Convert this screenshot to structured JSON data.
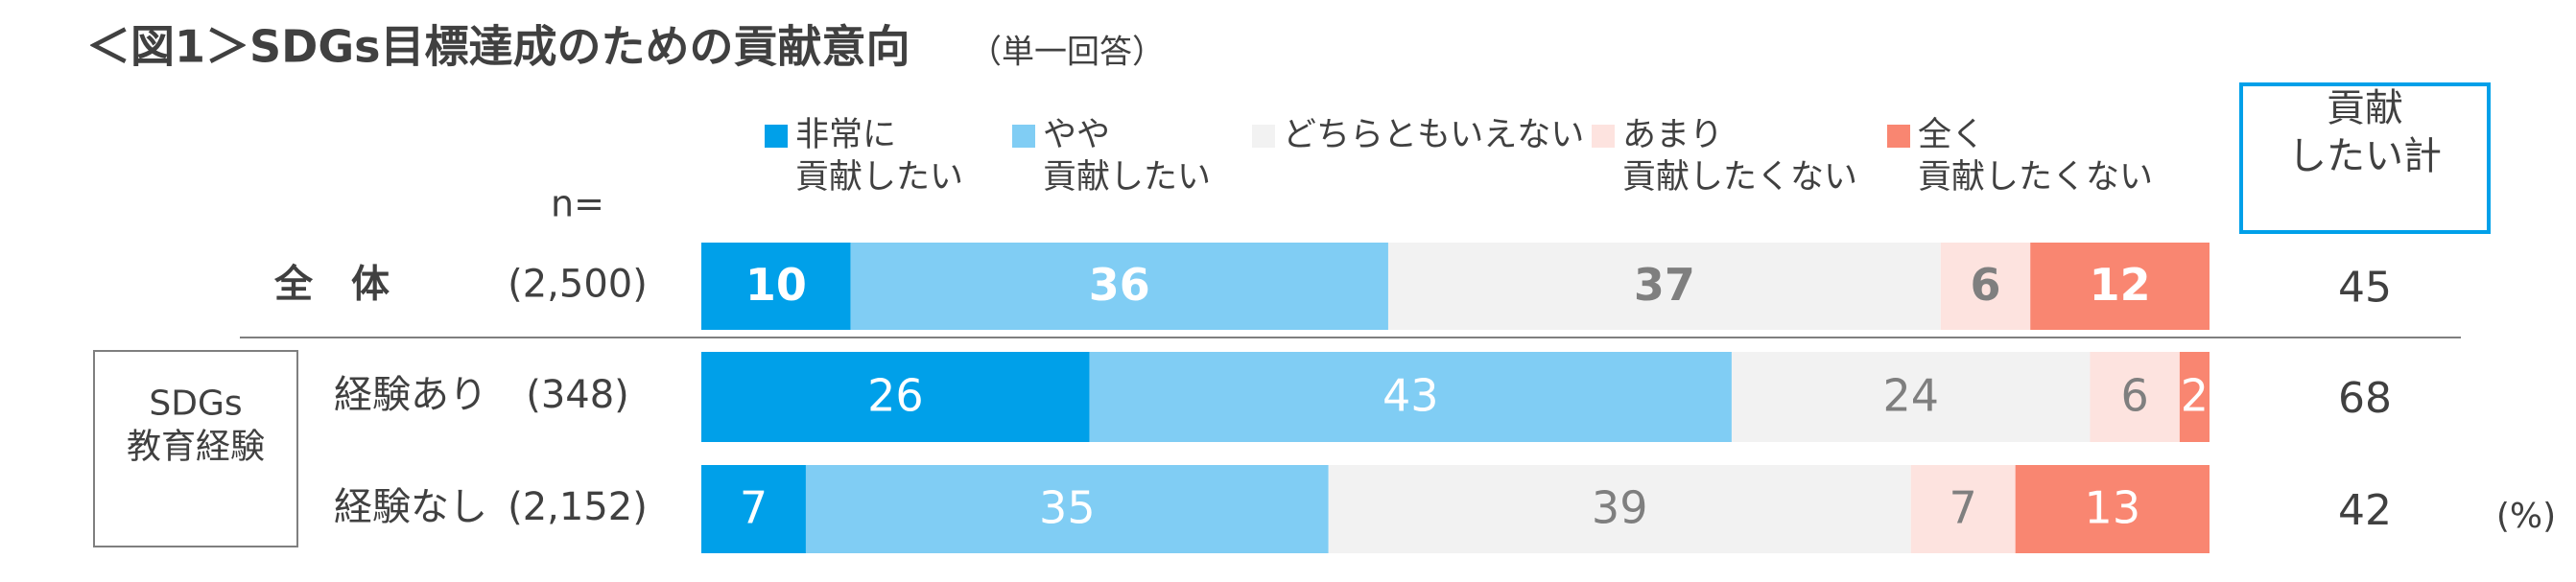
{
  "chart_data": {
    "type": "stacked_bar_100",
    "title": "＜図1＞SDGs目標達成のための貢献意向",
    "subtitle": "（単一回答）",
    "n_header": "n=",
    "categories": [
      "全　体",
      "経験あり",
      "経験なし"
    ],
    "n_labels": [
      "(2,500)",
      "(348)",
      "(2,152)"
    ],
    "group_label": "SDGs\n教育経験",
    "series": [
      {
        "name": "非常に\n貢献したい",
        "color": "#00a0e9",
        "label_color": "#ffffff",
        "values": [
          10,
          26,
          7
        ]
      },
      {
        "name": "やや\n貢献したい",
        "color": "#80cdf4",
        "label_color": "#ffffff",
        "values": [
          36,
          43,
          35
        ]
      },
      {
        "name": "どちらともいえない",
        "color": "#f2f2f2",
        "label_color": "#7f7f7f",
        "values": [
          37,
          24,
          39
        ]
      },
      {
        "name": "あまり\n貢献したくない",
        "color": "#fde3df",
        "label_color": "#7f7f7f",
        "values": [
          6,
          6,
          7
        ]
      },
      {
        "name": "全く\n貢献したくない",
        "color": "#f98671",
        "label_color": "#ffffff",
        "values": [
          12,
          2,
          13
        ]
      }
    ],
    "total_header": "貢献\nしたい計",
    "totals": [
      45,
      68,
      42
    ],
    "unit": "(%)"
  }
}
